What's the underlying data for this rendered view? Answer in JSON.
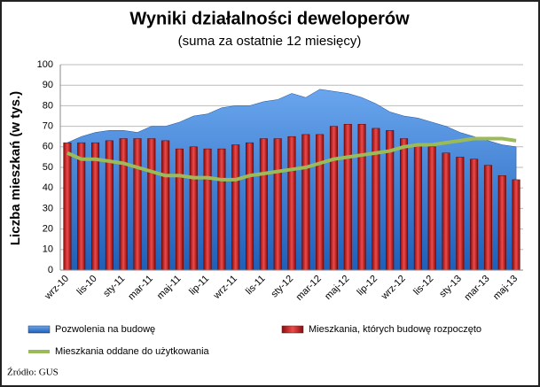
{
  "chart_data": {
    "type": "combo",
    "title": "Wyniki działalności deweloperów",
    "subtitle": "(suma za ostatnie 12 miesięcy)",
    "y_label": "Liczba mieszkań (w tys.)",
    "source": "Źródło: GUS",
    "categories": [
      "wrz-10",
      null,
      "lis-10",
      null,
      "sty-11",
      null,
      "mar-11",
      null,
      "maj-11",
      null,
      "lip-11",
      null,
      "wrz-11",
      null,
      "lis-11",
      null,
      "sty-12",
      null,
      "mar-12",
      null,
      "maj-12",
      null,
      "lip-12",
      null,
      "wrz-12",
      null,
      "lis-12",
      null,
      "sty-13",
      null,
      "mar-13",
      null,
      "maj-13"
    ],
    "ylim": [
      0,
      100
    ],
    "yticks": [
      0,
      10,
      20,
      30,
      40,
      50,
      60,
      70,
      80,
      90,
      100
    ],
    "grid": true,
    "series": [
      {
        "name": "Pozwolenia na budowę",
        "type": "area",
        "color": "#3a7fd5",
        "values": [
          62,
          65,
          67,
          68,
          68,
          67,
          70,
          70,
          72,
          75,
          76,
          79,
          80,
          80,
          82,
          83,
          86,
          84,
          88,
          87,
          86,
          84,
          81,
          77,
          75,
          74,
          72,
          70,
          67,
          65,
          63,
          61,
          60
        ]
      },
      {
        "name": "Mieszkania, których budowę rozpoczęto",
        "type": "bar",
        "color": "#d42020",
        "values": [
          62,
          62,
          62,
          63,
          64,
          64,
          64,
          63,
          59,
          60,
          59,
          59,
          61,
          62,
          64,
          64,
          65,
          66,
          66,
          70,
          71,
          71,
          69,
          68,
          64,
          61,
          60,
          57,
          55,
          54,
          51,
          46,
          44
        ]
      },
      {
        "name": "Mieszkania oddane do użytkowania",
        "type": "line",
        "color": "#9bbb59",
        "values": [
          57,
          54,
          54,
          53,
          52,
          50,
          48,
          46,
          46,
          45,
          45,
          44,
          44,
          46,
          47,
          48,
          49,
          50,
          52,
          54,
          55,
          56,
          57,
          58,
          60,
          61,
          61,
          62,
          63,
          64,
          64,
          64,
          63
        ]
      }
    ]
  }
}
